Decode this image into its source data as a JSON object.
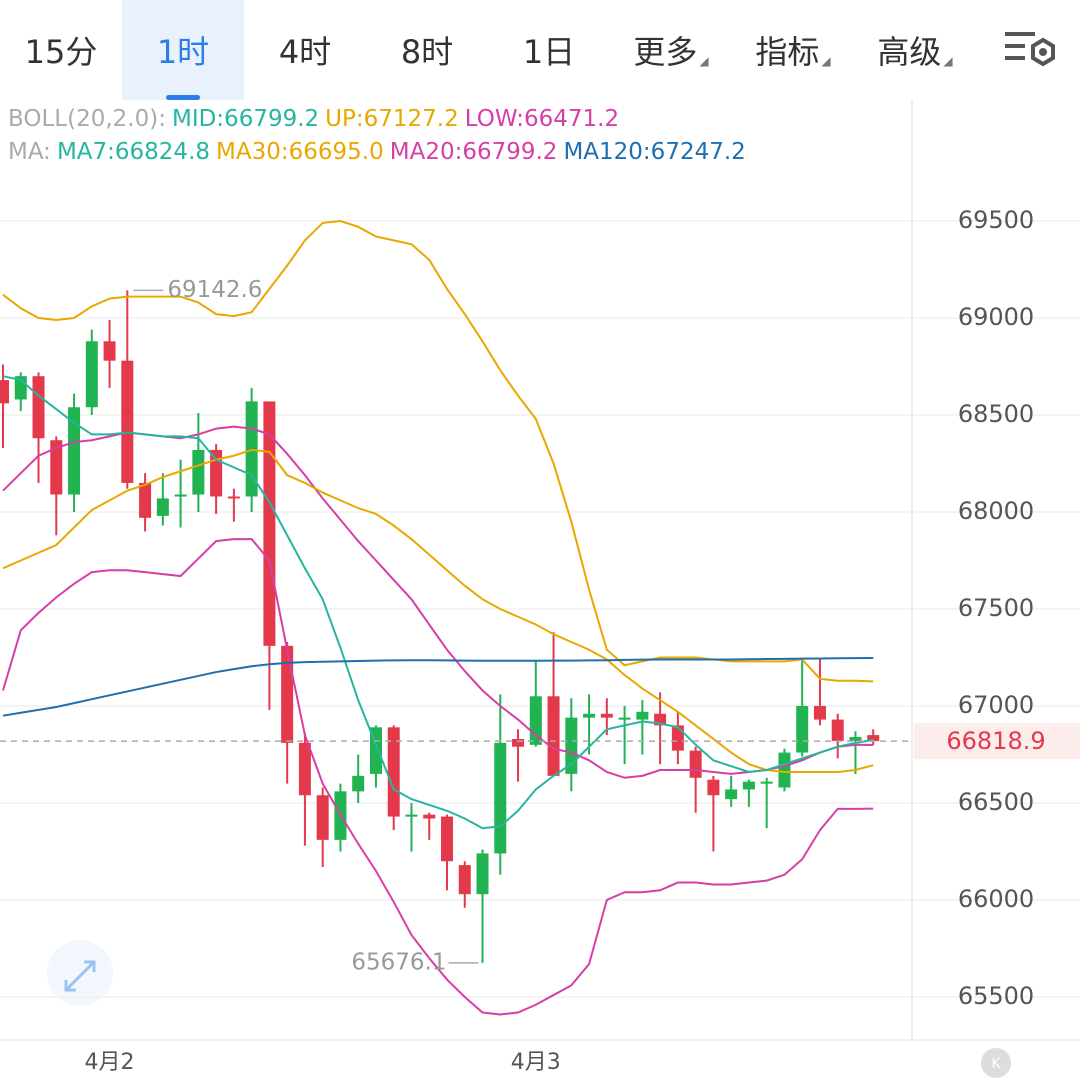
{
  "tabs": [
    "15分",
    "1时",
    "4时",
    "8时",
    "1日",
    "更多",
    "指标",
    "高级"
  ],
  "selected_tab": 1,
  "legend": [
    [
      {
        "text": "BOLL(20,2.0):",
        "color": "#aaaaaa"
      },
      {
        "text": "MID:66799.2",
        "color": "#26b5a0"
      },
      {
        "text": "UP:67127.2",
        "color": "#e8a800"
      },
      {
        "text": "LOW:66471.2",
        "color": "#d63fa5"
      }
    ],
    [
      {
        "text": "MA:",
        "color": "#aaaaaa"
      },
      {
        "text": "MA7:66824.8",
        "color": "#26b5a0"
      },
      {
        "text": "MA30:66695.0",
        "color": "#e8a800"
      },
      {
        "text": "MA20:66799.2",
        "color": "#d63fa5"
      },
      {
        "text": "MA120:67247.2",
        "color": "#1f6fb0"
      }
    ]
  ],
  "chart_data": {
    "type": "candlestick",
    "categories": [
      null,
      null,
      null,
      null,
      null,
      null,
      "4月2",
      null,
      null,
      null,
      null,
      null,
      null,
      null,
      null,
      null,
      null,
      null,
      null,
      null,
      null,
      null,
      null,
      null,
      null,
      null,
      null,
      null,
      null,
      null,
      "4月3",
      null,
      null,
      null,
      null,
      null,
      null,
      null,
      null,
      null,
      null,
      null,
      null,
      null,
      null,
      null,
      null,
      null,
      null,
      null
    ],
    "open": [
      68680,
      68580,
      68700,
      68370,
      68090,
      68540,
      68880,
      68780,
      68150,
      67980,
      68080,
      68090,
      68320,
      68080,
      68080,
      68570,
      67310,
      66810,
      66540,
      66310,
      66560,
      66650,
      66890,
      66430,
      66440,
      66430,
      66180,
      66030,
      66240,
      66830,
      66800,
      67050,
      66650,
      66940,
      66960,
      66940,
      66930,
      66960,
      66900,
      66770,
      66620,
      66520,
      66570,
      66610,
      66580,
      66760,
      67000,
      66930,
      66820,
      66850
    ],
    "high": [
      68760,
      68720,
      68720,
      68390,
      68610,
      68940,
      68990,
      69142.6,
      68200,
      68200,
      68270,
      68510,
      68350,
      68120,
      68640,
      68570,
      67330,
      66860,
      66580,
      66600,
      66750,
      66900,
      66900,
      66500,
      66450,
      66440,
      66200,
      66260,
      67060,
      66880,
      67230,
      67380,
      67040,
      67060,
      67040,
      67000,
      67030,
      67070,
      66970,
      66790,
      66640,
      66640,
      66620,
      66630,
      66780,
      67250,
      67250,
      66960,
      66870,
      66880
    ],
    "low": [
      68330,
      68520,
      68150,
      67880,
      68000,
      68500,
      68640,
      68120,
      67900,
      67930,
      67920,
      68000,
      67990,
      67950,
      68000,
      66980,
      66600,
      66280,
      66170,
      66250,
      66500,
      66580,
      66360,
      66250,
      66310,
      66050,
      65960,
      65676.1,
      66130,
      66610,
      66790,
      66640,
      66560,
      66750,
      66850,
      66700,
      66750,
      66700,
      66700,
      66450,
      66250,
      66480,
      66480,
      66370,
      66560,
      66740,
      66900,
      66730,
      66650,
      66800
    ],
    "close": [
      68560,
      68700,
      68380,
      68090,
      68540,
      68880,
      68780,
      68150,
      67970,
      68070,
      68090,
      68320,
      68080,
      68070,
      68570,
      67310,
      66810,
      66540,
      66310,
      66560,
      66640,
      66890,
      66430,
      66440,
      66420,
      66200,
      66030,
      66240,
      66810,
      66790,
      67050,
      66640,
      66940,
      66960,
      66940,
      66940,
      66970,
      66900,
      66770,
      66630,
      66540,
      66570,
      66610,
      66610,
      66760,
      67000,
      66930,
      66820,
      66840,
      66818.9
    ],
    "up_color": "#21b251",
    "down_color": "#e4394b",
    "lines": [
      {
        "color": "#e8a800",
        "values": [
          69120,
          69050,
          69000,
          68990,
          69000,
          69060,
          69100,
          69110,
          69110,
          69110,
          69110,
          69080,
          69020,
          69010,
          69030,
          69150,
          69270,
          69400,
          69490,
          69500,
          69470,
          69420,
          69400,
          69380,
          69300,
          69150,
          69020,
          68880,
          68730,
          68600,
          68480,
          68250,
          67950,
          67600,
          67290,
          67210,
          67230,
          67250,
          67250,
          67250,
          67240,
          67230,
          67230,
          67230,
          67230,
          67240,
          67140,
          67130,
          67130,
          67127.2
        ]
      },
      {
        "color": "#d63fa5",
        "values": [
          67080,
          67390,
          67480,
          67560,
          67630,
          67690,
          67700,
          67700,
          67690,
          67680,
          67670,
          67760,
          67850,
          67860,
          67860,
          67750,
          67290,
          66850,
          66600,
          66440,
          66290,
          66150,
          65990,
          65820,
          65700,
          65590,
          65500,
          65420,
          65410,
          65420,
          65460,
          65510,
          65560,
          65670,
          66000,
          66040,
          66040,
          66050,
          66090,
          66090,
          66080,
          66080,
          66090,
          66100,
          66130,
          66210,
          66360,
          66470,
          66470,
          66471.2
        ]
      },
      {
        "color": "#d63fa5",
        "values": [
          68110,
          68200,
          68290,
          68330,
          68360,
          68370,
          68390,
          68410,
          68400,
          68390,
          68380,
          68400,
          68430,
          68440,
          68430,
          68400,
          68300,
          68190,
          68070,
          67960,
          67850,
          67750,
          67650,
          67550,
          67420,
          67290,
          67180,
          67080,
          67000,
          66930,
          66850,
          66780,
          66760,
          66720,
          66660,
          66630,
          66640,
          66670,
          66670,
          66670,
          66660,
          66650,
          66660,
          66670,
          66690,
          66720,
          66760,
          66790,
          66800,
          66799.2
        ]
      },
      {
        "color": "#e8a800",
        "values": [
          67710,
          67750,
          67790,
          67830,
          67920,
          68010,
          68060,
          68110,
          68140,
          68180,
          68210,
          68240,
          68270,
          68290,
          68320,
          68310,
          68190,
          68150,
          68100,
          68060,
          68020,
          67990,
          67930,
          67860,
          67780,
          67700,
          67620,
          67550,
          67500,
          67460,
          67420,
          67370,
          67330,
          67290,
          67240,
          67160,
          67090,
          67030,
          66970,
          66900,
          66830,
          66760,
          66700,
          66670,
          66660,
          66660,
          66660,
          66660,
          66670,
          66695.0
        ]
      },
      {
        "color": "#26b5a0",
        "values": [
          68700,
          68680,
          68600,
          68530,
          68460,
          68400,
          68400,
          68410,
          68400,
          68390,
          68390,
          68380,
          68270,
          68230,
          68190,
          68050,
          67880,
          67710,
          67550,
          67300,
          67030,
          66800,
          66570,
          66520,
          66490,
          66460,
          66420,
          66370,
          66380,
          66460,
          66570,
          66640,
          66700,
          66790,
          66880,
          66900,
          66920,
          66910,
          66890,
          66800,
          66720,
          66690,
          66660,
          66670,
          66700,
          66730,
          66760,
          66790,
          66810,
          66824.8
        ]
      },
      {
        "color": "#1f6fb0",
        "values": [
          66950,
          66965,
          66980,
          66995,
          67015,
          67035,
          67055,
          67075,
          67095,
          67115,
          67135,
          67155,
          67175,
          67190,
          67205,
          67215,
          67222,
          67226,
          67228,
          67230,
          67232,
          67234,
          67235,
          67236,
          67236,
          67235,
          67234,
          67233,
          67233,
          67233,
          67233,
          67234,
          67234,
          67235,
          67236,
          67238,
          67239,
          67240,
          67240,
          67240,
          67240,
          67240,
          67241,
          67242,
          67243,
          67244,
          67245,
          67246,
          67247,
          67247.2
        ]
      }
    ],
    "ylim": [
      65300,
      69800
    ],
    "yticks": [
      65500,
      66000,
      66500,
      67000,
      67500,
      68000,
      68500,
      69000,
      69500
    ],
    "grid": true
  }
}
